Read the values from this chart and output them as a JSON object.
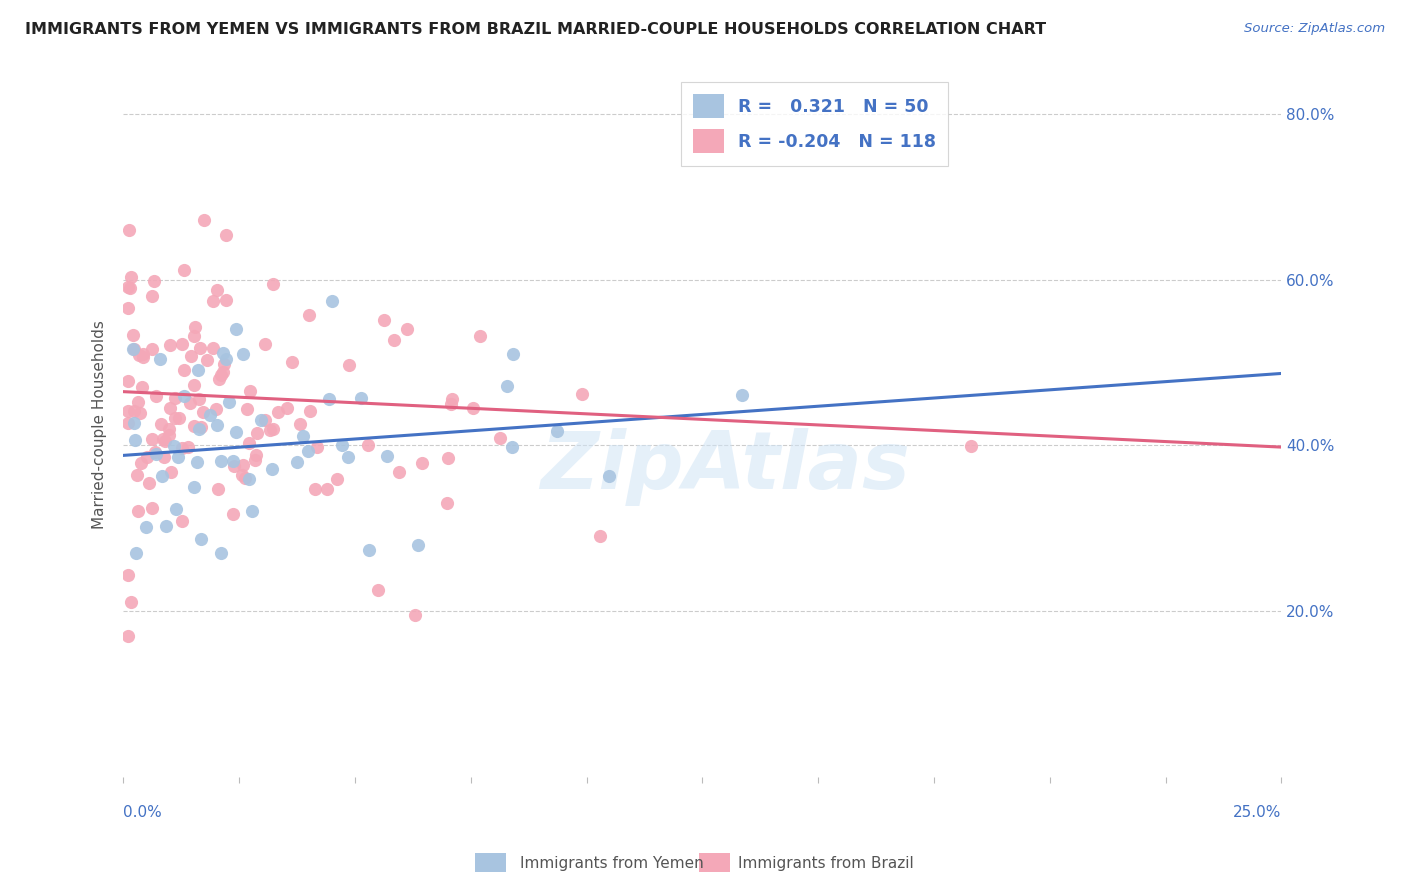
{
  "title": "IMMIGRANTS FROM YEMEN VS IMMIGRANTS FROM BRAZIL MARRIED-COUPLE HOUSEHOLDS CORRELATION CHART",
  "source": "Source: ZipAtlas.com",
  "ylabel_label": "Married-couple Households",
  "legend_label_yemen": "Immigrants from Yemen",
  "legend_label_brazil": "Immigrants from Brazil",
  "color_yemen": "#a8c4e0",
  "color_brazil": "#f4a8b8",
  "color_line_yemen": "#4472c4",
  "color_line_brazil": "#e06080",
  "color_text_blue": "#4472c4",
  "color_title": "#333333",
  "watermark": "ZipAtlas",
  "xlim": [
    0.0,
    0.25
  ],
  "ylim": [
    0.0,
    0.85
  ],
  "ytick_vals": [
    0.2,
    0.4,
    0.6,
    0.8
  ],
  "ytick_labels": [
    "20.0%",
    "40.0%",
    "60.0%",
    "80.0%"
  ],
  "legend_line1": "R =   0.321   N = 50",
  "legend_line2": "R = -0.204   N = 118",
  "r_yemen": 0.321,
  "n_yemen": 50,
  "r_brazil": -0.204,
  "n_brazil": 118,
  "trend_yemen_x0": 0.0,
  "trend_yemen_y0": 0.388,
  "trend_yemen_x1": 0.25,
  "trend_yemen_y1": 0.487,
  "trend_brazil_x0": 0.0,
  "trend_brazil_y0": 0.465,
  "trend_brazil_x1": 0.25,
  "trend_brazil_y1": 0.398
}
